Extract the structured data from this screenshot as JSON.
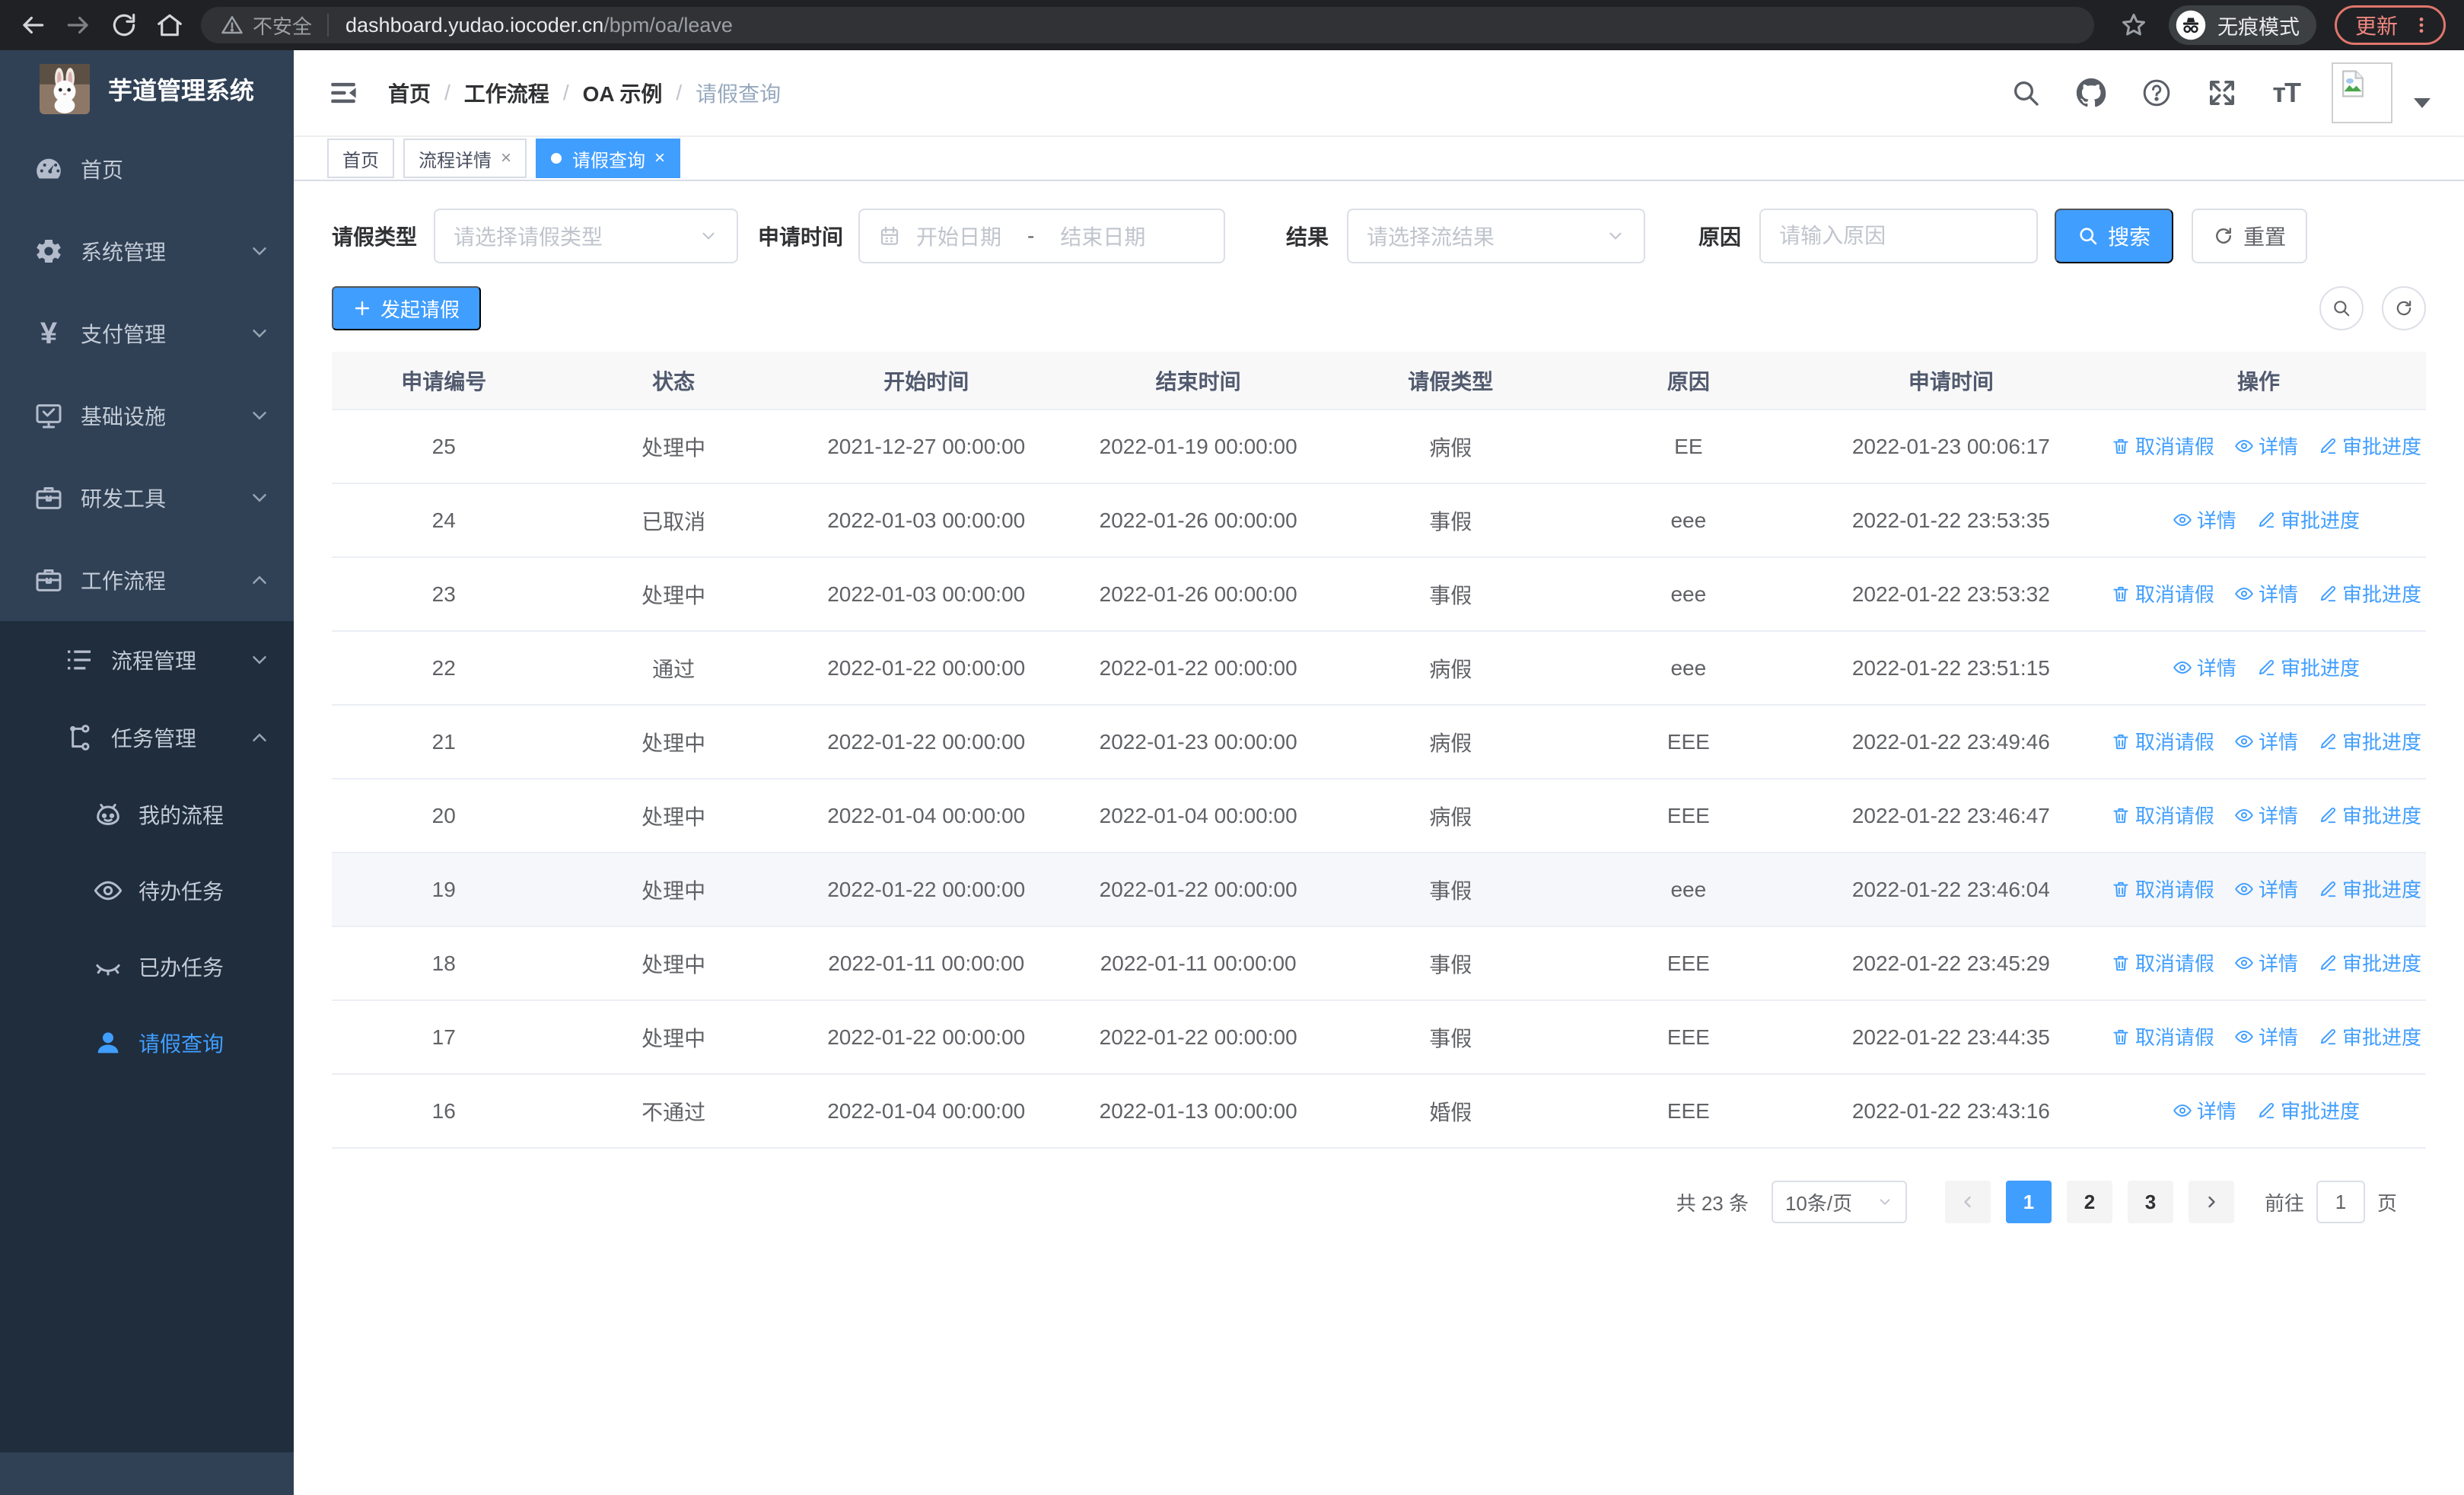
{
  "browser": {
    "security_label": "不安全",
    "url_host": "dashboard.yudao.iocoder.cn",
    "url_path": "/bpm/oa/leave",
    "incognito_label": "无痕模式",
    "update_label": "更新"
  },
  "sidebar": {
    "title": "芋道管理系统",
    "items": [
      {
        "label": "首页"
      },
      {
        "label": "系统管理"
      },
      {
        "label": "支付管理"
      },
      {
        "label": "基础设施"
      },
      {
        "label": "研发工具"
      },
      {
        "label": "工作流程"
      }
    ],
    "submenu": [
      {
        "label": "流程管理"
      },
      {
        "label": "任务管理"
      }
    ],
    "task_items": [
      {
        "label": "我的流程"
      },
      {
        "label": "待办任务"
      },
      {
        "label": "已办任务"
      },
      {
        "label": "请假查询"
      }
    ]
  },
  "header": {
    "breadcrumb": [
      "首页",
      "工作流程",
      "OA 示例",
      "请假查询"
    ]
  },
  "tabs": [
    {
      "label": "首页"
    },
    {
      "label": "流程详情"
    },
    {
      "label": "请假查询"
    }
  ],
  "filters": {
    "leave_type_label": "请假类型",
    "leave_type_placeholder": "请选择请假类型",
    "apply_time_label": "申请时间",
    "start_date_placeholder": "开始日期",
    "range_separator": "-",
    "end_date_placeholder": "结束日期",
    "result_label": "结果",
    "result_placeholder": "请选择流结果",
    "reason_label": "原因",
    "reason_placeholder": "请输入原因",
    "search_label": "搜索",
    "reset_label": "重置"
  },
  "toolbar": {
    "create_label": "发起请假"
  },
  "table": {
    "columns": [
      "申请编号",
      "状态",
      "开始时间",
      "结束时间",
      "请假类型",
      "原因",
      "申请时间",
      "操作"
    ],
    "action_defs": {
      "cancel": {
        "label": "取消请假",
        "icon": "trash-icon"
      },
      "detail": {
        "label": "详情",
        "icon": "eye-icon"
      },
      "progress": {
        "label": "审批进度",
        "icon": "edit-icon"
      }
    },
    "rows": [
      {
        "id": "25",
        "status": "处理中",
        "start": "2021-12-27 00:00:00",
        "end": "2022-01-19 00:00:00",
        "type": "病假",
        "reason": "EE",
        "applied": "2022-01-23 00:06:17",
        "actions": [
          "cancel",
          "detail",
          "progress"
        ]
      },
      {
        "id": "24",
        "status": "已取消",
        "start": "2022-01-03 00:00:00",
        "end": "2022-01-26 00:00:00",
        "type": "事假",
        "reason": "eee",
        "applied": "2022-01-22 23:53:35",
        "actions": [
          "detail",
          "progress"
        ]
      },
      {
        "id": "23",
        "status": "处理中",
        "start": "2022-01-03 00:00:00",
        "end": "2022-01-26 00:00:00",
        "type": "事假",
        "reason": "eee",
        "applied": "2022-01-22 23:53:32",
        "actions": [
          "cancel",
          "detail",
          "progress"
        ]
      },
      {
        "id": "22",
        "status": "通过",
        "start": "2022-01-22 00:00:00",
        "end": "2022-01-22 00:00:00",
        "type": "病假",
        "reason": "eee",
        "applied": "2022-01-22 23:51:15",
        "actions": [
          "detail",
          "progress"
        ]
      },
      {
        "id": "21",
        "status": "处理中",
        "start": "2022-01-22 00:00:00",
        "end": "2022-01-23 00:00:00",
        "type": "病假",
        "reason": "EEE",
        "applied": "2022-01-22 23:49:46",
        "actions": [
          "cancel",
          "detail",
          "progress"
        ]
      },
      {
        "id": "20",
        "status": "处理中",
        "start": "2022-01-04 00:00:00",
        "end": "2022-01-04 00:00:00",
        "type": "病假",
        "reason": "EEE",
        "applied": "2022-01-22 23:46:47",
        "actions": [
          "cancel",
          "detail",
          "progress"
        ]
      },
      {
        "id": "19",
        "status": "处理中",
        "start": "2022-01-22 00:00:00",
        "end": "2022-01-22 00:00:00",
        "type": "事假",
        "reason": "eee",
        "applied": "2022-01-22 23:46:04",
        "actions": [
          "cancel",
          "detail",
          "progress"
        ],
        "highlighted": true
      },
      {
        "id": "18",
        "status": "处理中",
        "start": "2022-01-11 00:00:00",
        "end": "2022-01-11 00:00:00",
        "type": "事假",
        "reason": "EEE",
        "applied": "2022-01-22 23:45:29",
        "actions": [
          "cancel",
          "detail",
          "progress"
        ]
      },
      {
        "id": "17",
        "status": "处理中",
        "start": "2022-01-22 00:00:00",
        "end": "2022-01-22 00:00:00",
        "type": "事假",
        "reason": "EEE",
        "applied": "2022-01-22 23:44:35",
        "actions": [
          "cancel",
          "detail",
          "progress"
        ]
      },
      {
        "id": "16",
        "status": "不通过",
        "start": "2022-01-04 00:00:00",
        "end": "2022-01-13 00:00:00",
        "type": "婚假",
        "reason": "EEE",
        "applied": "2022-01-22 23:43:16",
        "actions": [
          "detail",
          "progress"
        ]
      }
    ]
  },
  "pagination": {
    "total_label": "共 23 条",
    "page_size_label": "10条/页",
    "pages": [
      "1",
      "2",
      "3"
    ],
    "goto_label": "前往",
    "goto_value": "1",
    "page_suffix_label": "页"
  },
  "colors": {
    "primary": "#409eff",
    "sidebar_bg": "#304156",
    "submenu_bg": "#1f2d3d",
    "table_border": "#ebeef5"
  }
}
